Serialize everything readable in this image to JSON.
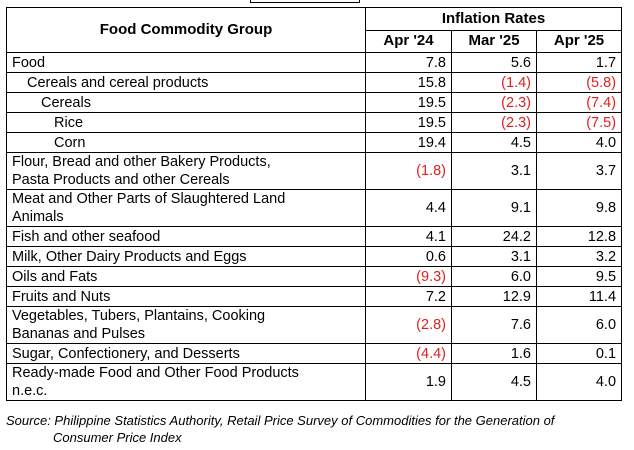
{
  "table": {
    "header": {
      "group_label": "Food Commodity Group",
      "rates_label": "Inflation Rates",
      "periods": [
        "Apr '24",
        "Mar '25",
        "Apr '25"
      ]
    },
    "rows": [
      {
        "label": "Food",
        "values": [
          "7.8",
          "5.6",
          "1.7"
        ]
      },
      {
        "label": "Cereals and cereal products",
        "values": [
          "15.8",
          "(1.4)",
          "(5.8)"
        ]
      },
      {
        "label": "Cereals",
        "values": [
          "19.5",
          "(2.3)",
          "(7.4)"
        ]
      },
      {
        "label": "Rice",
        "values": [
          "19.5",
          "(2.3)",
          "(7.5)"
        ]
      },
      {
        "label": "Corn",
        "values": [
          "19.4",
          "4.5",
          "4.0"
        ]
      },
      {
        "label_line1": "Flour, Bread and other Bakery Products,",
        "label_line2": "Pasta Products and other Cereals",
        "values": [
          "(1.8)",
          "3.1",
          "3.7"
        ]
      },
      {
        "label_line1": "Meat and Other Parts of Slaughtered Land",
        "label_line2": "Animals",
        "values": [
          "4.4",
          "9.1",
          "9.8"
        ]
      },
      {
        "label": "Fish and other seafood",
        "values": [
          "4.1",
          "24.2",
          "12.8"
        ]
      },
      {
        "label": "Milk, Other Dairy Products and Eggs",
        "values": [
          "0.6",
          "3.1",
          "3.2"
        ]
      },
      {
        "label": "Oils and Fats",
        "values": [
          "(9.3)",
          "6.0",
          "9.5"
        ]
      },
      {
        "label": "Fruits and Nuts",
        "values": [
          "7.2",
          "12.9",
          "11.4"
        ]
      },
      {
        "label_line1": "Vegetables, Tubers, Plantains, Cooking",
        "label_line2": "Bananas and Pulses",
        "values": [
          "(2.8)",
          "7.6",
          "6.0"
        ]
      },
      {
        "label": "Sugar, Confectionery, and Desserts",
        "values": [
          "(4.4)",
          "1.6",
          "0.1"
        ]
      },
      {
        "label_line1": "Ready-made Food and Other Food Products",
        "label_line2": "n.e.c.",
        "values": [
          "1.9",
          "4.5",
          "4.0"
        ]
      }
    ]
  },
  "source": {
    "line1": "Source: Philippine Statistics Authority, Retail Price Survey of Commodities for the Generation of",
    "line2": "Consumer Price Index"
  },
  "colors": {
    "negative": "#e02020",
    "text": "#000000",
    "border": "#000000"
  }
}
